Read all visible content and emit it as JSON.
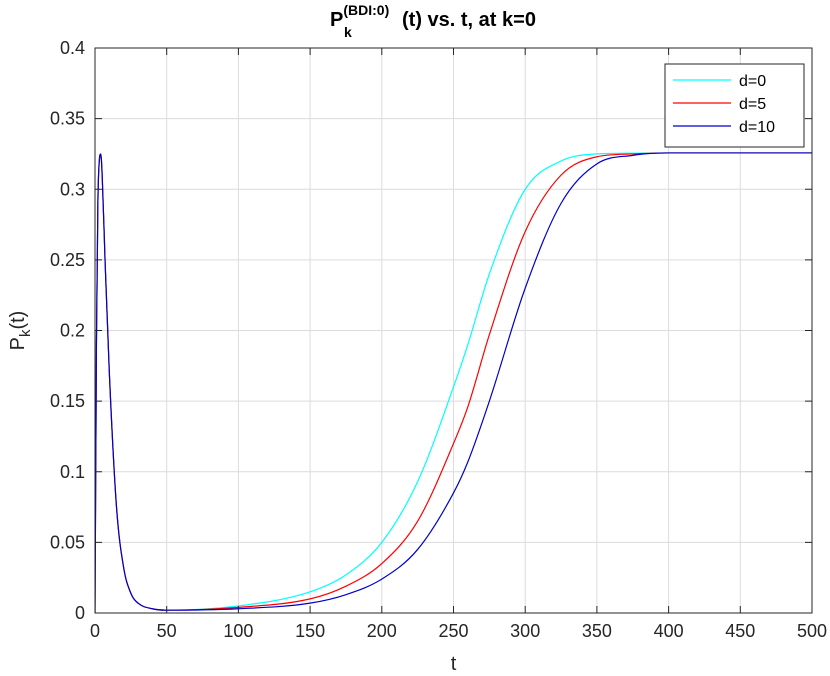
{
  "chart_data": {
    "type": "line",
    "title": {
      "main": "P",
      "superscript": "(BDI:0)",
      "subscript": "k",
      "rest": "(t) vs. t, at k=0"
    },
    "xlabel": "t",
    "ylabel": {
      "main": "P",
      "subscript": "k",
      "rest": "(t)"
    },
    "xlim": [
      0,
      500
    ],
    "ylim": [
      0,
      0.4
    ],
    "xticks": [
      0,
      50,
      100,
      150,
      200,
      250,
      300,
      350,
      400,
      450,
      500
    ],
    "xtick_labels": [
      "0",
      "50",
      "100",
      "150",
      "200",
      "250",
      "300",
      "350",
      "400",
      "450",
      "500"
    ],
    "yticks": [
      0,
      0.05,
      0.1,
      0.15,
      0.2,
      0.25,
      0.3,
      0.35,
      0.4
    ],
    "ytick_labels": [
      "0",
      "0.05",
      "0.1",
      "0.15",
      "0.2",
      "0.25",
      "0.3",
      "0.35",
      "0.4"
    ],
    "grid": true,
    "legend_position": "top-right",
    "series": [
      {
        "name": "d=0",
        "color": "#00ffff",
        "x": [
          0,
          1,
          2,
          3,
          4,
          5,
          7,
          10,
          15,
          20,
          25,
          30,
          40,
          50,
          100,
          150,
          175,
          200,
          225,
          250,
          260,
          275,
          300,
          325,
          350,
          375,
          400,
          500
        ],
        "y": [
          0,
          0.19,
          0.29,
          0.32,
          0.325,
          0.31,
          0.25,
          0.17,
          0.075,
          0.032,
          0.014,
          0.007,
          0.003,
          0.002,
          0.005,
          0.015,
          0.027,
          0.05,
          0.093,
          0.16,
          0.19,
          0.24,
          0.3,
          0.32,
          0.325,
          0.3255,
          0.3257,
          0.3257
        ]
      },
      {
        "name": "d=5",
        "color": "#ff0000",
        "x": [
          0,
          1,
          2,
          3,
          4,
          5,
          7,
          10,
          15,
          20,
          25,
          30,
          40,
          50,
          100,
          150,
          175,
          200,
          225,
          250,
          260,
          275,
          300,
          325,
          350,
          375,
          400,
          500
        ],
        "y": [
          0,
          0.19,
          0.29,
          0.32,
          0.325,
          0.31,
          0.25,
          0.17,
          0.075,
          0.032,
          0.014,
          0.007,
          0.003,
          0.002,
          0.004,
          0.01,
          0.019,
          0.035,
          0.065,
          0.12,
          0.146,
          0.197,
          0.27,
          0.31,
          0.323,
          0.325,
          0.3257,
          0.3257
        ]
      },
      {
        "name": "d=10",
        "color": "#0000cc",
        "x": [
          0,
          1,
          2,
          3,
          4,
          5,
          7,
          10,
          15,
          20,
          25,
          30,
          40,
          50,
          100,
          150,
          175,
          200,
          225,
          250,
          260,
          275,
          300,
          325,
          350,
          375,
          400,
          500
        ],
        "y": [
          0,
          0.19,
          0.29,
          0.32,
          0.325,
          0.31,
          0.25,
          0.17,
          0.075,
          0.032,
          0.014,
          0.007,
          0.003,
          0.002,
          0.003,
          0.007,
          0.013,
          0.024,
          0.045,
          0.085,
          0.107,
          0.15,
          0.23,
          0.29,
          0.318,
          0.324,
          0.3257,
          0.3257
        ]
      }
    ]
  }
}
